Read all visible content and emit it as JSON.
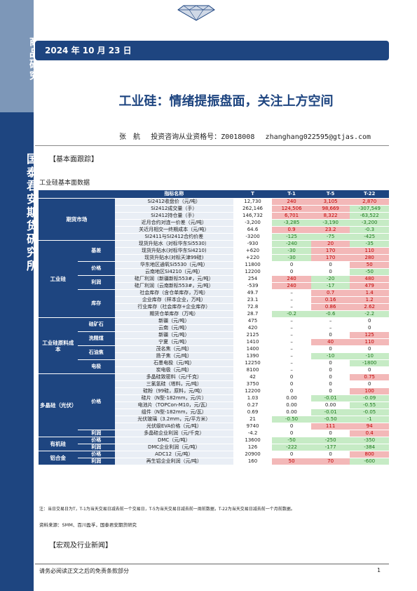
{
  "sidebar": {
    "top_label": "商品研究",
    "bottom_label": "国泰君安期货研究所"
  },
  "header": {
    "date": "2024 年 10 月 23 日"
  },
  "report": {
    "title": "工业硅：情绪提振盘面，关注上方空间",
    "author_name": "张　航",
    "cert_label": "投资咨询从业资格号：",
    "cert_no": "Z0018008",
    "email": "zhanghang022595@gtjas.com"
  },
  "sections": {
    "fundamentals": "【基本面跟踪】",
    "macro": "【宏观及行业新闻】"
  },
  "table": {
    "caption": "工业硅基本面数据",
    "headers": [
      "",
      "",
      "指标名称",
      "T",
      "T-1",
      "T-5",
      "T-22"
    ],
    "rows": [
      {
        "name": "Si2412收盘价（元/吨）",
        "t": "12,730",
        "t1": "240",
        "t5": "3,105",
        "t22": "2,870",
        "c1": "pos",
        "c5": "pos",
        "c22": "pos"
      },
      {
        "name": "Si2412成交量（手）",
        "t": "262,146",
        "t1": "124,506",
        "t5": "98,669",
        "t22": "-307,549",
        "c1": "pos",
        "c5": "pos",
        "c22": "neg"
      },
      {
        "name": "Si2412持仓量（手）",
        "t": "146,732",
        "t1": "6,701",
        "t5": "8,322",
        "t22": "-63,522",
        "c1": "pos",
        "c5": "pos",
        "c22": "neg"
      },
      {
        "name": "近月合约对连一价差（元/吨）",
        "t": "-3,200",
        "t1": "-3,285",
        "t5": "-3,190",
        "t22": "-3,200",
        "c1": "neg",
        "c5": "neg",
        "c22": "neg"
      },
      {
        "name": "关近月相交一终期成本（元/吨）",
        "t": "64.6",
        "t1": "0.9",
        "t5": "23.2",
        "t22": "-0.3",
        "c1": "pos",
        "c5": "pos",
        "c22": "neg"
      },
      {
        "name": "SI2411与SI2412合约价差",
        "t": "-3200",
        "t1": "-125",
        "t5": "-75",
        "t22": "-425",
        "c1": "neg",
        "c5": "neg",
        "c22": "neg"
      },
      {
        "name": "现货升贴水（对标华东Si5530）",
        "t": "-930",
        "t1": "-240",
        "t5": "20",
        "t22": "-35",
        "c1": "neg",
        "c5": "pos",
        "c22": "neg"
      },
      {
        "name": "现货升贴水(对标华东Si4210)",
        "t": "+620",
        "t1": "-30",
        "t5": "170",
        "t22": "110",
        "c1": "neg",
        "c5": "pos",
        "c22": "pos"
      },
      {
        "name": "现货升贴水(对标天津99硅)",
        "t": "+220",
        "t1": "-30",
        "t5": "170",
        "t22": "280",
        "c1": "neg",
        "c5": "pos",
        "c22": "pos"
      },
      {
        "name": "华东地区通氧Si5530（元/吨）",
        "t": "11800",
        "t1": "0",
        "t5": "0",
        "t22": "50",
        "c1": "zero",
        "c5": "zero",
        "c22": "pos"
      },
      {
        "name": "云南地区Si4210（元/吨）",
        "t": "12200",
        "t1": "0",
        "t5": "0",
        "t22": "-50",
        "c1": "zero",
        "c5": "zero",
        "c22": "neg"
      },
      {
        "name": "硅厂利润（新疆新标553#，元/吨）",
        "t": "254",
        "t1": "240",
        "t5": "-20",
        "t22": "480",
        "c1": "pos",
        "c5": "neg",
        "c22": "pos"
      },
      {
        "name": "硅厂利润（云南新标553#，元/吨）",
        "t": "-539",
        "t1": "240",
        "t5": "-17",
        "t22": "479",
        "c1": "pos",
        "c5": "neg",
        "c22": "pos"
      },
      {
        "name": "社会库存（含仓单库存，万吨）",
        "t": "49.7",
        "t1": "–",
        "t5": "0.7",
        "t22": "1.4",
        "c1": "zero",
        "c5": "pos",
        "c22": "pos"
      },
      {
        "name": "企业库存（样本企业，万吨）",
        "t": "23.1",
        "t1": "–",
        "t5": "0.16",
        "t22": "1.2",
        "c1": "zero",
        "c5": "pos",
        "c22": "pos"
      },
      {
        "name": "行业库存（社会库存+企业库存）",
        "t": "72.8",
        "t1": "–",
        "t5": "0.86",
        "t22": "2.62",
        "c1": "zero",
        "c5": "pos",
        "c22": "pos"
      },
      {
        "name": "期货仓单库存（万吨）",
        "t": "28.7",
        "t1": "-0.2",
        "t5": "-0.6",
        "t22": "-2.2",
        "c1": "neg",
        "c5": "neg",
        "c22": "neg"
      },
      {
        "name": "新疆（元/吨）",
        "t": "475",
        "t1": "–",
        "t5": "–",
        "t22": "0",
        "c1": "zero",
        "c5": "zero",
        "c22": "zero"
      },
      {
        "name": "云南（元/吨）",
        "t": "420",
        "t1": "–",
        "t5": "–",
        "t22": "0",
        "c1": "zero",
        "c5": "zero",
        "c22": "zero"
      },
      {
        "name": "新疆（元/吨）",
        "t": "2125",
        "t1": "–",
        "t5": "0",
        "t22": "125",
        "c1": "zero",
        "c5": "zero",
        "c22": "pos"
      },
      {
        "name": "宁夏（元/吨）",
        "t": "1410",
        "t1": "–",
        "t5": "40",
        "t22": "110",
        "c1": "zero",
        "c5": "pos",
        "c22": "pos"
      },
      {
        "name": "茂名焦（元/吨）",
        "t": "1400",
        "t1": "–",
        "t5": "0",
        "t22": "0",
        "c1": "zero",
        "c5": "zero",
        "c22": "zero"
      },
      {
        "name": "扬子焦（元/吨）",
        "t": "1390",
        "t1": "–",
        "t5": "-10",
        "t22": "-10",
        "c1": "zero",
        "c5": "neg",
        "c22": "neg"
      },
      {
        "name": "石墨电极（元/吨）",
        "t": "12250",
        "t1": "–",
        "t5": "0",
        "t22": "-1800",
        "c1": "zero",
        "c5": "zero",
        "c22": "neg"
      },
      {
        "name": "炭电极（元/吨）",
        "t": "8100",
        "t1": "–",
        "t5": "0",
        "t22": "0",
        "c1": "zero",
        "c5": "zero",
        "c22": "zero"
      },
      {
        "name": "多晶硅致密料（元/千克）",
        "t": "42",
        "t1": "0",
        "t5": "0",
        "t22": "0.75",
        "c1": "zero",
        "c5": "zero",
        "c22": "pos"
      },
      {
        "name": "三氯氢硅（塔料，元/吨）",
        "t": "3750",
        "t1": "0",
        "t5": "0",
        "t22": "0",
        "c1": "zero",
        "c5": "zero",
        "c22": "zero"
      },
      {
        "name": "硅粉（99硅，原料，元/吨）",
        "t": "12200",
        "t1": "0",
        "t5": "0",
        "t22": "100",
        "c1": "zero",
        "c5": "zero",
        "c22": "pos"
      },
      {
        "name": "硅片（N型-182mm，元/片）",
        "t": "1.03",
        "t1": "0.00",
        "t5": "-0.01",
        "t22": "-0.09",
        "c1": "zero",
        "c5": "neg",
        "c22": "neg"
      },
      {
        "name": "电池片（TOPCon-M10，元/瓦）",
        "t": "0.27",
        "t1": "0.00",
        "t5": "0.00",
        "t22": "-0.55",
        "c1": "zero",
        "c5": "zero",
        "c22": "neg"
      },
      {
        "name": "组件（N型-182mm，元/瓦）",
        "t": "0.69",
        "t1": "0.00",
        "t5": "-0.01",
        "t22": "-0.05",
        "c1": "zero",
        "c5": "neg",
        "c22": "neg"
      },
      {
        "name": "光伏玻璃（3.2mm，元/平方米）",
        "t": "21",
        "t1": "-0.50",
        "t5": "-0.50",
        "t22": "-1",
        "c1": "neg",
        "c5": "neg",
        "c22": "neg"
      },
      {
        "name": "光伏级EVA价格（元/吨）",
        "t": "9740",
        "t1": "0",
        "t5": "111",
        "t22": "94",
        "c1": "zero",
        "c5": "pos",
        "c22": "pos"
      },
      {
        "name": "多晶硅企业利润（元/千克）",
        "t": "-4.2",
        "t1": "0",
        "t5": "0",
        "t22": "0.4",
        "c1": "zero",
        "c5": "zero",
        "c22": "pos"
      },
      {
        "name": "DMC（元/吨）",
        "t": "13600",
        "t1": "-50",
        "t5": "-250",
        "t22": "-350",
        "c1": "neg",
        "c5": "neg",
        "c22": "neg"
      },
      {
        "name": "DMC企业利润（元/吨）",
        "t": "126",
        "t1": "-222",
        "t5": "-177",
        "t22": "-384",
        "c1": "neg",
        "c5": "neg",
        "c22": "neg"
      },
      {
        "name": "ADC12（元/吨）",
        "t": "20900",
        "t1": "0",
        "t5": "0",
        "t22": "800",
        "c1": "zero",
        "c5": "zero",
        "c22": "pos"
      },
      {
        "name": "再生铝企业利润（元/吨）",
        "t": "160",
        "t1": "50",
        "t5": "70",
        "t22": "-600",
        "c1": "pos",
        "c5": "pos",
        "c22": "neg"
      }
    ],
    "groups": {
      "futures": "期货市场",
      "industrial_si": "工业硅",
      "basis": "基差",
      "price": "价格",
      "profit": "利润",
      "inventory": "库存",
      "raw_cost": "工业硅原料成本",
      "silica": "硅矿石",
      "coal": "洗精煤",
      "coke": "石油焦",
      "electrode": "电极",
      "poly": "多晶硅（光伏）",
      "poly_price": "价格",
      "poly_profit": "利润",
      "organic": "有机硅",
      "organic_price": "价格",
      "organic_profit": "利润",
      "alloy": "铝合金",
      "alloy_price": "价格",
      "alloy_profit": "利润"
    },
    "note": "注：当日交易日为T，T-1为当天交易日减去前一个交易日，T-5为当天交易日减去前一周前数据，T-22为当天交易日减去前一个月前数据。",
    "source": "资料来源：SMM、百川盈孚，国泰君安期货研究"
  },
  "footer": {
    "disclaimer": "请务必阅读正文之后的免责条款部分",
    "page": "1"
  },
  "colors": {
    "brand": "#1e4580",
    "up": "#c00000",
    "down": "#1e7a1e"
  }
}
